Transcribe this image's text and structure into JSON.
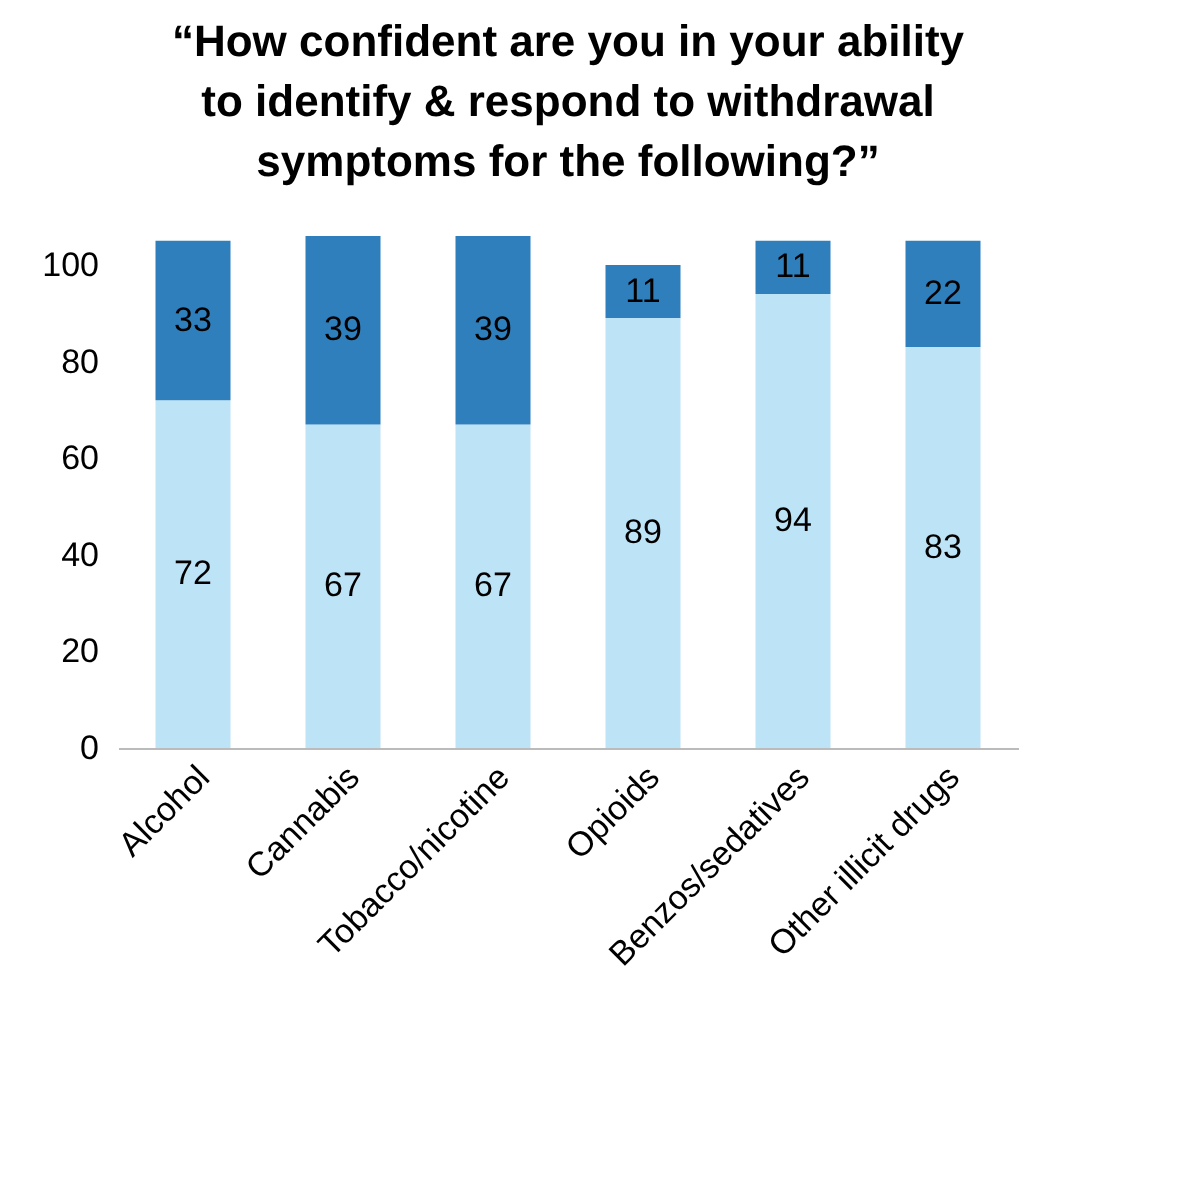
{
  "chart_data": {
    "type": "bar",
    "title": "“How confident are you in your ability to identify & respond to withdrawal symptoms for the following?”",
    "categories": [
      "Alcohol",
      "Cannabis",
      "Tobacco/nicotine",
      "Opioids",
      "Benzos/sedatives",
      "Other illicit drugs"
    ],
    "series": [
      {
        "color": "#bde3f7",
        "values": [
          72,
          67,
          67,
          89,
          94,
          83
        ]
      },
      {
        "color": "#2f7fbd",
        "values": [
          33,
          39,
          39,
          11,
          11,
          22
        ]
      }
    ],
    "stacked": true,
    "ylim": [
      0,
      106
    ],
    "yticks": [
      0,
      20,
      40,
      60,
      80,
      100
    ],
    "grid": false,
    "legend": false,
    "data_labels": true
  }
}
